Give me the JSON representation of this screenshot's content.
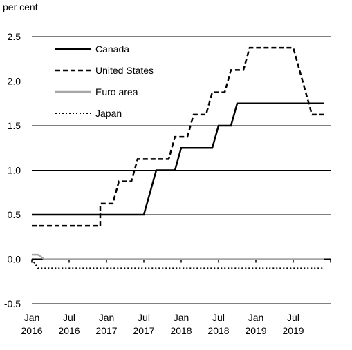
{
  "chart_data": {
    "type": "line",
    "title": "",
    "unit_label": "per cent",
    "xlabel": "",
    "ylabel": "",
    "ylim": [
      -0.5,
      2.5
    ],
    "yticks": [
      -0.5,
      0.0,
      0.5,
      1.0,
      1.5,
      2.0,
      2.5
    ],
    "ytick_labels": [
      "-0.5",
      "0.0",
      "0.5",
      "1.0",
      "1.5",
      "2.0",
      "2.5"
    ],
    "xlim": [
      "2016-01",
      "2019-12"
    ],
    "xticks": [
      {
        "month": "2016-01",
        "line1": "Jan",
        "line2": "2016"
      },
      {
        "month": "2016-07",
        "line1": "Jul",
        "line2": "2016"
      },
      {
        "month": "2017-01",
        "line1": "Jan",
        "line2": "2017"
      },
      {
        "month": "2017-07",
        "line1": "Jul",
        "line2": "2017"
      },
      {
        "month": "2018-01",
        "line1": "Jan",
        "line2": "2018"
      },
      {
        "month": "2018-07",
        "line1": "Jul",
        "line2": "2018"
      },
      {
        "month": "2019-01",
        "line1": "Jan",
        "line2": "2019"
      },
      {
        "month": "2019-07",
        "line1": "Jul",
        "line2": "2019"
      }
    ],
    "grid": "horizontal",
    "legend_position": "top-left",
    "series": [
      {
        "name": "Canada",
        "style": "solid",
        "color": "#000000",
        "points": [
          [
            "2016-01",
            0.5
          ],
          [
            "2017-07",
            0.5
          ],
          [
            "2017-08",
            0.75
          ],
          [
            "2017-09",
            1.0
          ],
          [
            "2017-12",
            1.0
          ],
          [
            "2018-01",
            1.25
          ],
          [
            "2018-06",
            1.25
          ],
          [
            "2018-07",
            1.5
          ],
          [
            "2018-09",
            1.5
          ],
          [
            "2018-10",
            1.75
          ],
          [
            "2019-12",
            1.75
          ]
        ]
      },
      {
        "name": "United States",
        "style": "dashed",
        "color": "#000000",
        "points": [
          [
            "2016-01",
            0.375
          ],
          [
            "2016-12",
            0.375
          ],
          [
            "2016-12",
            0.625
          ],
          [
            "2017-02",
            0.625
          ],
          [
            "2017-03",
            0.875
          ],
          [
            "2017-05",
            0.875
          ],
          [
            "2017-06",
            1.125
          ],
          [
            "2017-11",
            1.125
          ],
          [
            "2017-12",
            1.375
          ],
          [
            "2018-02",
            1.375
          ],
          [
            "2018-03",
            1.625
          ],
          [
            "2018-05",
            1.625
          ],
          [
            "2018-06",
            1.875
          ],
          [
            "2018-08",
            1.875
          ],
          [
            "2018-09",
            2.125
          ],
          [
            "2018-11",
            2.125
          ],
          [
            "2018-12",
            2.375
          ],
          [
            "2019-07",
            2.375
          ],
          [
            "2019-08",
            2.125
          ],
          [
            "2019-09",
            1.875
          ],
          [
            "2019-10",
            1.625
          ],
          [
            "2019-12",
            1.625
          ]
        ]
      },
      {
        "name": "Euro area",
        "style": "solid",
        "color": "#a6a6a6",
        "points": [
          [
            "2016-01",
            0.05
          ],
          [
            "2016-02",
            0.05
          ],
          [
            "2016-03",
            0.0
          ],
          [
            "2019-12",
            0.0
          ]
        ]
      },
      {
        "name": "Japan",
        "style": "dotted",
        "color": "#000000",
        "points": [
          [
            "2016-01",
            0.0
          ],
          [
            "2016-02",
            -0.1
          ],
          [
            "2019-12",
            -0.1
          ]
        ]
      }
    ]
  }
}
